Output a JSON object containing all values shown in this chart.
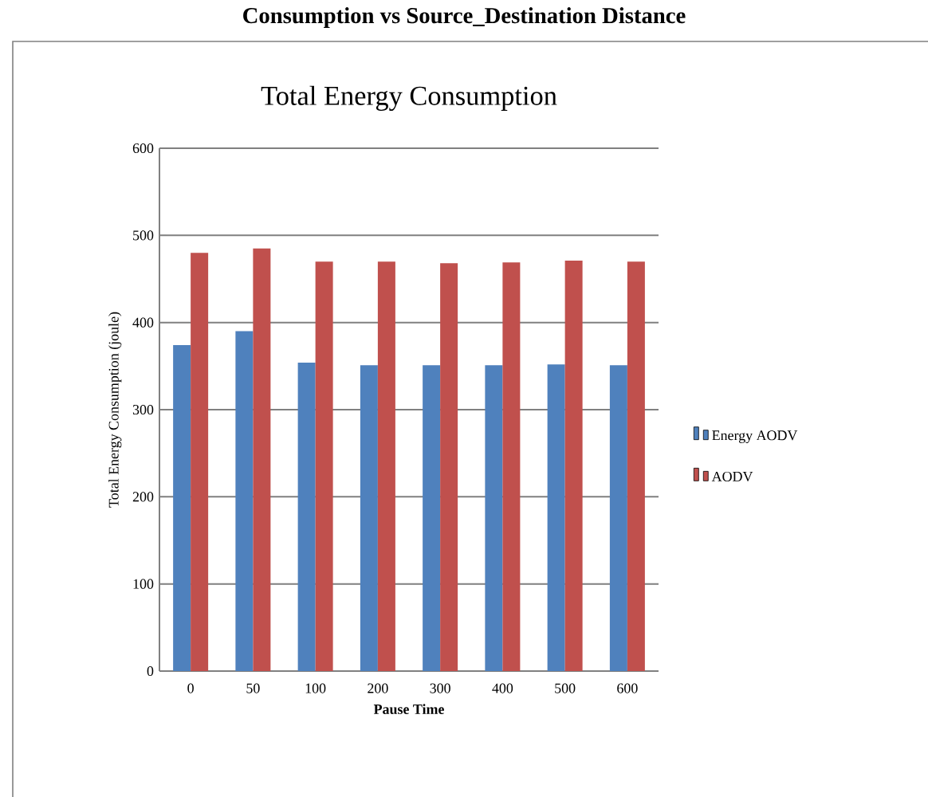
{
  "chart_data": {
    "type": "bar",
    "title": "Total Energy Consumption",
    "xlabel": "Pause Time",
    "ylabel": "Total Energy Consumption (joule)",
    "annotations": [
      "Consumption vs Source_Destination Distance"
    ],
    "categories": [
      "0",
      "50",
      "100",
      "200",
      "300",
      "400",
      "500",
      "600"
    ],
    "series": [
      {
        "name": "Energy AODV",
        "color": "#4f81bd",
        "values": [
          374,
          390,
          354,
          351,
          351,
          351,
          352,
          351
        ]
      },
      {
        "name": "AODV",
        "color": "#c0504d",
        "values": [
          480,
          485,
          470,
          470,
          468,
          469,
          471,
          470
        ]
      }
    ],
    "ylim": [
      0,
      600
    ],
    "yticks": [
      0,
      100,
      200,
      300,
      400,
      500,
      600
    ],
    "grid": "y",
    "legend": "right"
  }
}
